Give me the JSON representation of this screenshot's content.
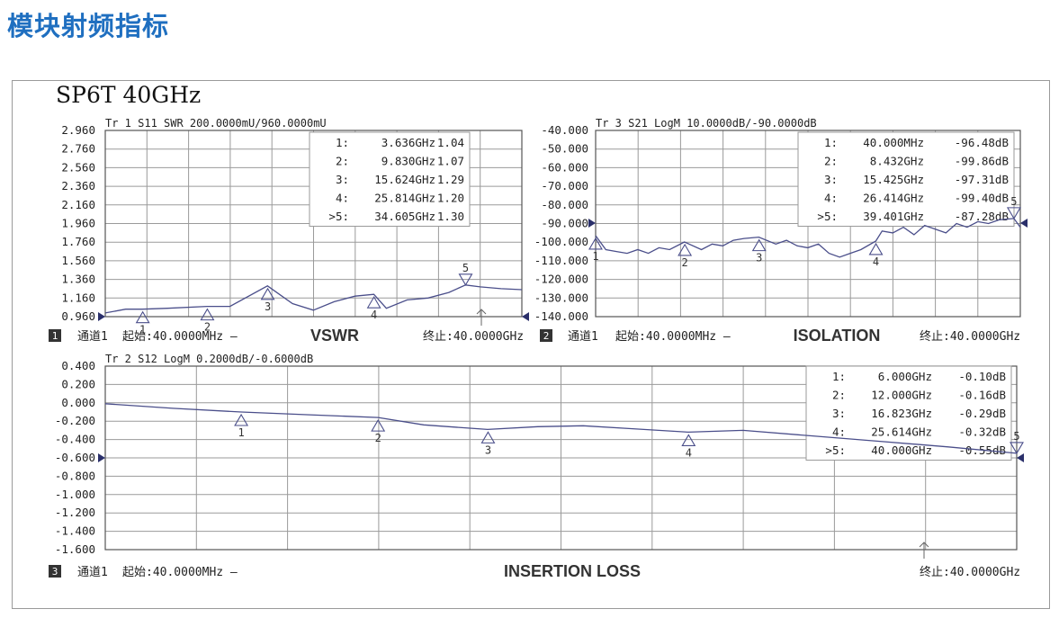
{
  "page": {
    "title": "模块射频指标",
    "doc_title": "SP6T 40GHz",
    "accent_color": "#1f6fc0",
    "trace_color": "#4a4e8a"
  },
  "chart_data": [
    {
      "type": "line",
      "title": "VSWR",
      "header": "Tr 1  S11 SWR 200.0000mU/960.0000mU",
      "y_ticks": [
        "2.960",
        "2.760",
        "2.560",
        "2.360",
        "2.160",
        "1.960",
        "1.760",
        "1.560",
        "1.360",
        "1.160",
        "0.960"
      ],
      "ylim": [
        0.96,
        2.96
      ],
      "xlim": [
        0.04,
        40
      ],
      "x_unit": "GHz",
      "channel_number": "1",
      "channel_label": "通道1",
      "start_label": "起始:40.0000MHz —",
      "stop_label": "终止:40.0000GHz",
      "markers": [
        {
          "id": "1",
          "label": "1:",
          "freq": "3.636GHz",
          "value": "1.04",
          "x": 3.636,
          "y": 1.04
        },
        {
          "id": "2",
          "label": "2:",
          "freq": "9.830GHz",
          "value": "1.07",
          "x": 9.83,
          "y": 1.07
        },
        {
          "id": "3",
          "label": "3:",
          "freq": "15.624GHz",
          "value": "1.29",
          "x": 15.624,
          "y": 1.29
        },
        {
          "id": "4",
          "label": "4:",
          "freq": "25.814GHz",
          "value": "1.20",
          "x": 25.814,
          "y": 1.2
        },
        {
          "id": "5",
          "label": ">5:",
          "freq": "34.605GHz",
          "value": "1.30",
          "x": 34.605,
          "y": 1.3
        }
      ],
      "x": [
        0.04,
        2,
        3.6,
        6,
        9.8,
        12,
        15.6,
        18,
        20,
        22,
        24,
        25.8,
        27,
        29,
        31,
        33,
        34.6,
        36,
        38,
        40
      ],
      "values": [
        1.0,
        1.04,
        1.04,
        1.05,
        1.07,
        1.07,
        1.29,
        1.1,
        1.03,
        1.12,
        1.18,
        1.2,
        1.05,
        1.14,
        1.16,
        1.22,
        1.3,
        1.28,
        1.26,
        1.25
      ]
    },
    {
      "type": "line",
      "title": "ISOLATION",
      "header": "Tr 3  S21 LogM 10.0000dB/-90.0000dB",
      "y_ticks": [
        "-40.000",
        "-50.000",
        "-60.000",
        "-70.000",
        "-80.000",
        "-90.000",
        "-100.000",
        "-110.000",
        "-120.000",
        "-130.000",
        "-140.000"
      ],
      "ylim": [
        -140,
        -40
      ],
      "xlim": [
        0.04,
        40
      ],
      "x_unit": "GHz",
      "channel_number": "2",
      "channel_label": "通道1",
      "start_label": "起始:40.0000MHz —",
      "stop_label": "终止:40.0000GHz",
      "markers": [
        {
          "id": "1",
          "label": "1:",
          "freq": "40.000MHz",
          "value": "-96.48dB",
          "x": 0.04,
          "y": -96.48
        },
        {
          "id": "2",
          "label": "2:",
          "freq": "8.432GHz",
          "value": "-99.86dB",
          "x": 8.432,
          "y": -99.86
        },
        {
          "id": "3",
          "label": "3:",
          "freq": "15.425GHz",
          "value": "-97.31dB",
          "x": 15.425,
          "y": -97.31
        },
        {
          "id": "4",
          "label": "4:",
          "freq": "26.414GHz",
          "value": "-99.40dB",
          "x": 26.414,
          "y": -99.4
        },
        {
          "id": "5",
          "label": ">5:",
          "freq": "39.401GHz",
          "value": "-87.28dB",
          "x": 39.401,
          "y": -87.28
        }
      ],
      "x": [
        0.04,
        1,
        2,
        3,
        4,
        5,
        6,
        7,
        8.4,
        10,
        11,
        12,
        13,
        14,
        15.4,
        17,
        18,
        19,
        20,
        21,
        22,
        23,
        24,
        25,
        26.4,
        27,
        28,
        29,
        30,
        31,
        32,
        33,
        34,
        35,
        36,
        37,
        38,
        39.4,
        40
      ],
      "values": [
        -96.5,
        -104,
        -105,
        -106,
        -104,
        -106,
        -103,
        -104,
        -99.9,
        -104,
        -101,
        -102,
        -99,
        -98,
        -97.3,
        -101,
        -99,
        -102,
        -103,
        -101,
        -106,
        -108,
        -106,
        -104,
        -99.4,
        -94,
        -95,
        -92,
        -96,
        -91,
        -93,
        -95,
        -90,
        -92,
        -89,
        -90,
        -88,
        -87.3,
        -92
      ]
    },
    {
      "type": "line",
      "title": "INSERTION LOSS",
      "header": "Tr 2  S12 LogM 0.2000dB/-0.6000dB",
      "y_ticks": [
        "0.400",
        "0.200",
        "0.000",
        "-0.200",
        "-0.400",
        "-0.600",
        "-0.800",
        "-1.000",
        "-1.200",
        "-1.400",
        "-1.600"
      ],
      "ylim": [
        -1.6,
        0.4
      ],
      "xlim": [
        0.04,
        40
      ],
      "x_unit": "GHz",
      "channel_number": "3",
      "channel_label": "通道1",
      "start_label": "起始:40.0000MHz —",
      "stop_label": "终止:40.0000GHz",
      "markers": [
        {
          "id": "1",
          "label": "1:",
          "freq": "6.000GHz",
          "value": "-0.10dB",
          "x": 6,
          "y": -0.1
        },
        {
          "id": "2",
          "label": "2:",
          "freq": "12.000GHz",
          "value": "-0.16dB",
          "x": 12,
          "y": -0.16
        },
        {
          "id": "3",
          "label": "3:",
          "freq": "16.823GHz",
          "value": "-0.29dB",
          "x": 16.823,
          "y": -0.29
        },
        {
          "id": "4",
          "label": "4:",
          "freq": "25.614GHz",
          "value": "-0.32dB",
          "x": 25.614,
          "y": -0.32
        },
        {
          "id": "5",
          "label": ">5:",
          "freq": "40.000GHz",
          "value": "-0.55dB",
          "x": 40,
          "y": -0.55
        }
      ],
      "x": [
        0.04,
        3,
        6,
        9,
        12,
        14,
        16.8,
        19,
        21,
        23,
        25.6,
        28,
        31,
        34,
        37,
        40
      ],
      "values": [
        -0.01,
        -0.06,
        -0.1,
        -0.13,
        -0.16,
        -0.24,
        -0.29,
        -0.26,
        -0.25,
        -0.28,
        -0.32,
        -0.3,
        -0.36,
        -0.42,
        -0.48,
        -0.55
      ]
    }
  ]
}
